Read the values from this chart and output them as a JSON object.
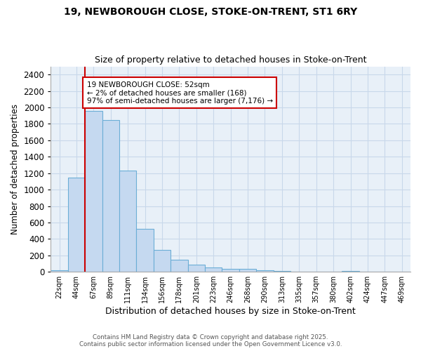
{
  "title1": "19, NEWBOROUGH CLOSE, STOKE-ON-TRENT, ST1 6RY",
  "title2": "Size of property relative to detached houses in Stoke-on-Trent",
  "xlabel": "Distribution of detached houses by size in Stoke-on-Trent",
  "ylabel": "Number of detached properties",
  "categories": [
    "22sqm",
    "44sqm",
    "67sqm",
    "89sqm",
    "111sqm",
    "134sqm",
    "156sqm",
    "178sqm",
    "201sqm",
    "223sqm",
    "246sqm",
    "268sqm",
    "290sqm",
    "313sqm",
    "335sqm",
    "357sqm",
    "380sqm",
    "402sqm",
    "424sqm",
    "447sqm",
    "469sqm"
  ],
  "values": [
    20,
    1150,
    1960,
    1850,
    1230,
    520,
    270,
    150,
    90,
    50,
    40,
    35,
    15,
    8,
    5,
    3,
    2,
    12,
    2,
    1,
    0
  ],
  "bar_color": "#c5d9f0",
  "bar_edge_color": "#6baed6",
  "red_line_x": 1.5,
  "annotation_text": "19 NEWBOROUGH CLOSE: 52sqm\n← 2% of detached houses are smaller (168)\n97% of semi-detached houses are larger (7,176) →",
  "annotation_box_color": "#ffffff",
  "annotation_box_edge": "#cc0000",
  "footer1": "Contains HM Land Registry data © Crown copyright and database right 2025.",
  "footer2": "Contains public sector information licensed under the Open Government Licence v3.0.",
  "ylim": [
    0,
    2500
  ],
  "yticks": [
    0,
    200,
    400,
    600,
    800,
    1000,
    1200,
    1400,
    1600,
    1800,
    2000,
    2200,
    2400
  ],
  "grid_color": "#c8d8ea",
  "bg_color": "#e8f0f8",
  "fig_bg": "#ffffff"
}
